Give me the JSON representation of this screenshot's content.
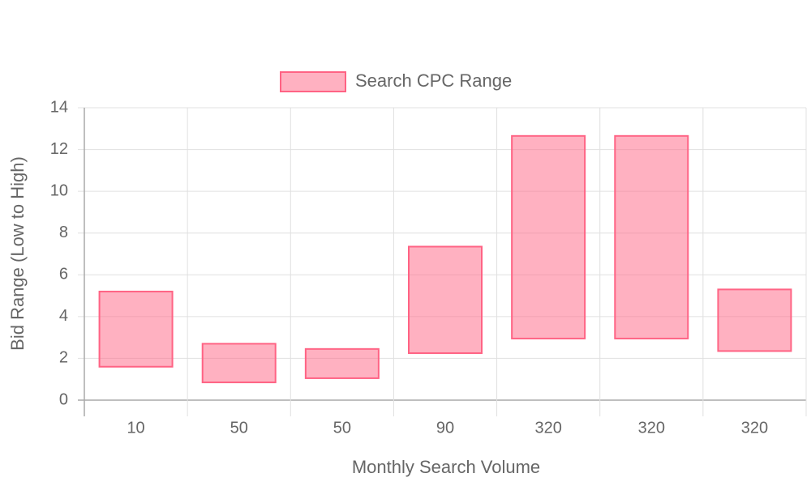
{
  "chart_data": {
    "type": "bar",
    "x_label": "Monthly Search Volume",
    "y_label": "Bid Range (Low to High)",
    "categories": [
      "10",
      "50",
      "50",
      "90",
      "320",
      "320",
      "320"
    ],
    "series": [
      {
        "name": "Search CPC Range",
        "color": "#ff6384",
        "fill": "rgba(255,99,132,0.5)",
        "values": [
          [
            1.6,
            5.2
          ],
          [
            0.85,
            2.7
          ],
          [
            1.05,
            2.45
          ],
          [
            2.25,
            7.35
          ],
          [
            2.95,
            12.65
          ],
          [
            2.95,
            12.65
          ],
          [
            2.35,
            5.3
          ]
        ]
      }
    ],
    "ylim": [
      0,
      14
    ],
    "yticks": [
      0,
      2,
      4,
      6,
      8,
      10,
      12,
      14
    ],
    "grid": true,
    "legend": "top"
  }
}
